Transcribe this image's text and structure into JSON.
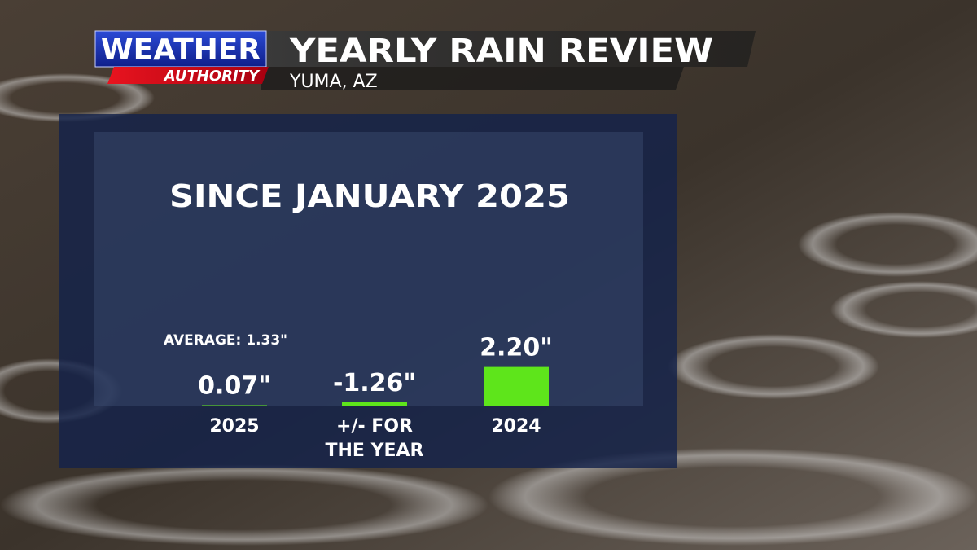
{
  "header": {
    "brand_top": "WEATHER",
    "brand_bottom": "AUTHORITY",
    "title": "YEARLY RAIN REVIEW",
    "location": "YUMA, AZ"
  },
  "chart_data": {
    "type": "bar",
    "title": "SINCE JANUARY 2025",
    "annotation": "AVERAGE: 1.33\"",
    "categories": [
      "2025",
      "2024"
    ],
    "values": [
      0.07,
      2.2
    ],
    "value_labels": [
      "0.07\"",
      "2.20\""
    ],
    "color": "#5ee51b"
  },
  "difference": {
    "value": -1.26,
    "label": "-1.26\"",
    "caption": "+/- FOR THE YEAR"
  }
}
